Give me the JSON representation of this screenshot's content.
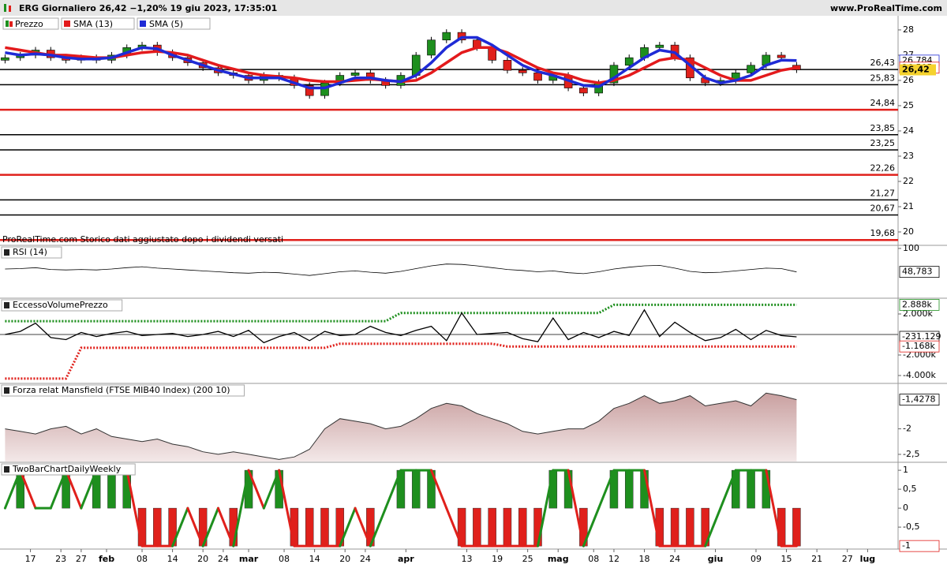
{
  "chart_data": {
    "type": "stock-panels",
    "title": "ERG Giornaliero 26,42 −1,20% 19 giu 2023, 17:35:01",
    "brand": "www.ProRealTime.com",
    "x": [
      12,
      15,
      18,
      21,
      24,
      27,
      30,
      33,
      36,
      39,
      42,
      45,
      48,
      51,
      54,
      57,
      60,
      63,
      66,
      69,
      72,
      75,
      78,
      81,
      84,
      87,
      90,
      93,
      96,
      99,
      102,
      105,
      108,
      111,
      114,
      117,
      120,
      123,
      126,
      129,
      132,
      135,
      138,
      141,
      144,
      147,
      150,
      153,
      156,
      159,
      162,
      165,
      168
    ],
    "xlim": [
      11,
      188
    ],
    "xticks": [
      17,
      23,
      27,
      {
        "value": 32,
        "label": "feb"
      },
      {
        "value": 39,
        "label": "08"
      },
      {
        "value": 45,
        "label": "14"
      },
      {
        "value": 51,
        "label": "20"
      },
      {
        "value": 55,
        "label": "24"
      },
      {
        "value": 60,
        "label": "mar"
      },
      {
        "value": 67,
        "label": "08"
      },
      {
        "value": 73,
        "label": "14"
      },
      {
        "value": 79,
        "label": "20"
      },
      {
        "value": 83,
        "label": "24"
      },
      {
        "value": 91,
        "label": "apr"
      },
      {
        "value": 103,
        "label": "13"
      },
      {
        "value": 109,
        "label": "19"
      },
      {
        "value": 115,
        "label": "25"
      },
      {
        "value": 121,
        "label": "mag"
      },
      {
        "value": 128,
        "label": "08"
      },
      {
        "value": 132,
        "label": "12"
      },
      {
        "value": 138,
        "label": "18"
      },
      {
        "value": 144,
        "label": "24"
      },
      {
        "value": 152,
        "label": "giu"
      },
      {
        "value": 160,
        "label": "09"
      },
      {
        "value": 166,
        "label": "15"
      },
      {
        "value": 172,
        "label": "21"
      },
      {
        "value": 178,
        "label": "27"
      },
      {
        "value": 182,
        "label": "lug"
      }
    ],
    "panels": [
      {
        "type": "candlestick",
        "note": "ProRealTime.com  Storico dati aggiustato dopo i dividendi versati",
        "ylim": [
          19.5,
          28.56
        ],
        "yticks": [
          20,
          21,
          22,
          23,
          24,
          25,
          26,
          27,
          28
        ],
        "series": [
          {
            "name": "Prezzo",
            "up_color": "#1e8f1e",
            "down_color": "#e0201b",
            "open": [
              26.8,
              26.9,
              27.0,
              27.2,
              26.9,
              26.8,
              26.9,
              26.8,
              27.0,
              27.3,
              27.4,
              27.1,
              26.9,
              26.7,
              26.5,
              26.3,
              26.2,
              26.0,
              26.2,
              26.1,
              25.8,
              25.4,
              25.9,
              26.2,
              26.3,
              26.0,
              25.8,
              26.2,
              27.0,
              27.6,
              27.9,
              27.6,
              27.3,
              26.8,
              26.4,
              26.3,
              26.0,
              26.2,
              25.7,
              25.5,
              25.9,
              26.6,
              26.9,
              27.3,
              27.4,
              26.9,
              26.1,
              25.9,
              26.0,
              26.3,
              26.6,
              27.0,
              26.6
            ],
            "close": [
              26.9,
              27.0,
              27.2,
              26.9,
              26.8,
              26.9,
              26.8,
              27.0,
              27.3,
              27.4,
              27.1,
              26.9,
              26.7,
              26.5,
              26.3,
              26.2,
              26.0,
              26.2,
              26.1,
              25.8,
              25.4,
              25.9,
              26.2,
              26.3,
              26.0,
              25.8,
              26.2,
              27.0,
              27.6,
              27.9,
              27.6,
              27.3,
              26.8,
              26.4,
              26.3,
              26.0,
              26.2,
              25.7,
              25.5,
              25.9,
              26.6,
              26.9,
              27.3,
              27.4,
              26.9,
              26.1,
              25.9,
              26.0,
              26.3,
              26.6,
              27.0,
              26.9,
              26.42
            ]
          },
          {
            "name": "SMA (13)",
            "color": "#e31a1c",
            "values": [
              27.3,
              27.2,
              27.1,
              27.0,
              27.0,
              26.95,
              26.9,
              26.9,
              27.0,
              27.1,
              27.15,
              27.1,
              27.0,
              26.8,
              26.6,
              26.45,
              26.3,
              26.2,
              26.15,
              26.1,
              26.0,
              25.95,
              25.95,
              26.0,
              26.05,
              26.0,
              25.95,
              26.0,
              26.3,
              26.7,
              27.1,
              27.3,
              27.3,
              27.1,
              26.8,
              26.5,
              26.3,
              26.2,
              26.0,
              25.9,
              26.0,
              26.2,
              26.5,
              26.8,
              26.9,
              26.8,
              26.5,
              26.2,
              26.0,
              26.0,
              26.2,
              26.4,
              26.505
            ]
          },
          {
            "name": "SMA (5)",
            "color": "#1f2bd6",
            "values": [
              27.1,
              27.0,
              27.05,
              27.0,
              26.9,
              26.85,
              26.85,
              26.9,
              27.1,
              27.3,
              27.25,
              27.0,
              26.8,
              26.6,
              26.4,
              26.25,
              26.1,
              26.1,
              26.1,
              25.9,
              25.7,
              25.7,
              25.9,
              26.1,
              26.1,
              26.0,
              25.95,
              26.2,
              26.7,
              27.3,
              27.7,
              27.7,
              27.4,
              27.0,
              26.6,
              26.35,
              26.2,
              26.0,
              25.8,
              25.75,
              26.1,
              26.5,
              26.9,
              27.2,
              27.1,
              26.6,
              26.1,
              25.9,
              26.0,
              26.2,
              26.6,
              26.8,
              26.784
            ]
          }
        ],
        "levels": [
          {
            "value": 26.43,
            "label": "26,43",
            "color": "#000000"
          },
          {
            "value": 25.83,
            "label": "25,83",
            "color": "#000000"
          },
          {
            "value": 24.84,
            "label": "24,84",
            "color": "#e0201b"
          },
          {
            "value": 23.85,
            "label": "23,85",
            "color": "#000000"
          },
          {
            "value": 23.25,
            "label": "23,25",
            "color": "#000000"
          },
          {
            "value": 22.26,
            "label": "22,26",
            "color": "#e0201b"
          },
          {
            "value": 21.27,
            "label": "21,27",
            "color": "#000000"
          },
          {
            "value": 20.67,
            "label": "20,67",
            "color": "#000000"
          },
          {
            "value": 19.68,
            "label": "19,68",
            "color": "#e0201b"
          }
        ],
        "end_labels": [
          {
            "value": 26.784,
            "label": "26,784",
            "color": "#1f2bd6"
          },
          {
            "value": 26.505,
            "label": "26,505",
            "color": "#e31a1c"
          },
          {
            "value": 26.42,
            "label": "26,42",
            "color": "#000000",
            "background": "#f5d22e"
          }
        ]
      },
      {
        "type": "line",
        "label": "RSI (14)",
        "ylim": [
          0,
          105
        ],
        "yticks": [
          100
        ],
        "color": "#000000",
        "values": [
          55,
          56,
          58,
          54,
          53,
          54,
          53,
          55,
          58,
          60,
          57,
          55,
          53,
          51,
          49,
          47,
          46,
          48,
          47,
          44,
          41,
          45,
          49,
          51,
          48,
          46,
          50,
          56,
          62,
          66,
          65,
          62,
          58,
          54,
          52,
          49,
          51,
          47,
          45,
          49,
          55,
          59,
          62,
          63,
          57,
          50,
          47,
          48,
          51,
          54,
          57,
          56,
          48.783
        ],
        "end_labels": [
          {
            "value": 48.783,
            "label": "48,783",
            "color": "#000000"
          }
        ]
      },
      {
        "type": "bands",
        "label": "EccessoVolumePrezzo",
        "ylim": [
          -4770,
          3460
        ],
        "yticks": [
          {
            "value": 2000,
            "label": "2.000k"
          },
          {
            "value": -2000,
            "label": "-2.000k"
          },
          {
            "value": -4000,
            "label": "-4.000k"
          }
        ],
        "series": [
          {
            "color": "#1e8f1e",
            "dotted": true,
            "values": [
              1300,
              1300,
              1300,
              1300,
              1300,
              1300,
              1300,
              1300,
              1300,
              1300,
              1300,
              1300,
              1300,
              1300,
              1300,
              1300,
              1300,
              1300,
              1300,
              1300,
              1300,
              1300,
              1300,
              1300,
              1300,
              1300,
              2100,
              2100,
              2100,
              2100,
              2100,
              2100,
              2100,
              2100,
              2100,
              2100,
              2100,
              2100,
              2100,
              2100,
              2888,
              2888,
              2888,
              2888,
              2888,
              2888,
              2888,
              2888,
              2888,
              2888,
              2888,
              2888,
              2888
            ]
          },
          {
            "color": "#e0201b",
            "dotted": true,
            "values": [
              -4300,
              -4300,
              -4300,
              -4300,
              -4300,
              -1300,
              -1300,
              -1300,
              -1300,
              -1300,
              -1300,
              -1300,
              -1300,
              -1300,
              -1300,
              -1300,
              -1300,
              -1300,
              -1300,
              -1300,
              -1300,
              -1300,
              -900,
              -900,
              -900,
              -900,
              -900,
              -900,
              -900,
              -900,
              -900,
              -900,
              -900,
              -1168,
              -1168,
              -1168,
              -1168,
              -1168,
              -1168,
              -1168,
              -1168,
              -1168,
              -1168,
              -1168,
              -1168,
              -1168,
              -1168,
              -1168,
              -1168,
              -1168,
              -1168,
              -1168,
              -1168
            ]
          },
          {
            "color": "#000000",
            "dotted": false,
            "values": [
              0,
              300,
              1100,
              -300,
              -500,
              200,
              -200,
              100,
              300,
              -100,
              0,
              100,
              -200,
              0,
              300,
              -200,
              400,
              -800,
              -200,
              200,
              -600,
              300,
              -100,
              0,
              800,
              200,
              -100,
              400,
              800,
              -600,
              2100,
              0,
              100,
              200,
              -400,
              -700,
              1600,
              -500,
              200,
              -300,
              300,
              -100,
              2400,
              -200,
              1200,
              200,
              -600,
              -300,
              500,
              -500,
              400,
              -100,
              -231.129
            ]
          }
        ],
        "end_labels": [
          {
            "value": 2888,
            "label": "2.888k",
            "color": "#1e8f1e"
          },
          {
            "value": -231.129,
            "label": "-231.129",
            "color": "#000000"
          },
          {
            "value": -1168,
            "label": "-1.168k",
            "color": "#e0201b"
          }
        ]
      },
      {
        "type": "area",
        "label": "Forza relat Mansfield (FTSE MIB40 Index) (200 10)",
        "ylim": [
          -2.64,
          -1.125
        ],
        "yticks": [
          -2,
          {
            "value": -2.5,
            "label": "-2,5"
          }
        ],
        "color": "#333333",
        "fill": "#c9a3a3",
        "values": [
          -2.0,
          -2.05,
          -2.1,
          -2.0,
          -1.95,
          -2.1,
          -2.0,
          -2.15,
          -2.2,
          -2.25,
          -2.2,
          -2.3,
          -2.35,
          -2.45,
          -2.5,
          -2.45,
          -2.5,
          -2.55,
          -2.6,
          -2.55,
          -2.4,
          -2.0,
          -1.8,
          -1.85,
          -1.9,
          -2.0,
          -1.95,
          -1.8,
          -1.6,
          -1.5,
          -1.55,
          -1.7,
          -1.8,
          -1.9,
          -2.05,
          -2.1,
          -2.05,
          -2.0,
          -2.0,
          -1.85,
          -1.6,
          -1.5,
          -1.35,
          -1.5,
          -1.45,
          -1.35,
          -1.55,
          -1.5,
          -1.45,
          -1.55,
          -1.3,
          -1.35,
          -1.4278
        ],
        "end_labels": [
          {
            "value": -1.4278,
            "label": "-1,4278",
            "color": "#000000"
          }
        ]
      },
      {
        "type": "bar",
        "label": "TwoBarChartDailyWeekly",
        "ylim": [
          -1.08,
          1.19
        ],
        "yticks": [
          1,
          {
            "value": 0.5,
            "label": "0,5"
          },
          0,
          {
            "value": -0.5,
            "label": "-0,5"
          }
        ],
        "up_color": "#1e8f1e",
        "down_color": "#e0201b",
        "values": [
          0,
          1,
          0,
          0,
          1,
          0,
          1,
          1,
          1,
          -1,
          -1,
          -1,
          0,
          -1,
          0,
          -1,
          1,
          0,
          1,
          -1,
          -1,
          -1,
          -1,
          0,
          -1,
          0,
          1,
          1,
          1,
          0,
          -1,
          -1,
          -1,
          -1,
          -1,
          -1,
          1,
          1,
          -1,
          0,
          1,
          1,
          1,
          -1,
          -1,
          -1,
          -1,
          0,
          1,
          1,
          1,
          -1,
          -1
        ],
        "end_labels": [
          {
            "value": -1,
            "label": "-1",
            "color": "#e0201b"
          }
        ]
      }
    ]
  }
}
